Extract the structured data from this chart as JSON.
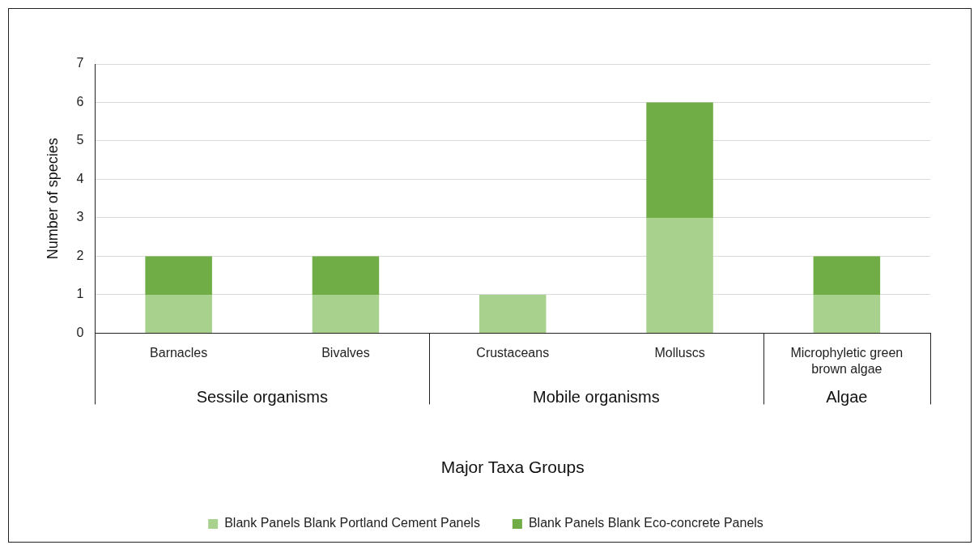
{
  "chart_data": {
    "type": "bar",
    "stacked": true,
    "xlabel": "Major Taxa Groups",
    "ylabel": "Number of species",
    "categories": [
      "Barnacles",
      "Bivalves",
      "Crustaceans",
      "Molluscs",
      "Microphyletic green brown algae"
    ],
    "series": [
      {
        "name": "Blank Panels Blank Portland Cement Panels",
        "color": "#a9d18e",
        "values": [
          1,
          1,
          1,
          3,
          1
        ]
      },
      {
        "name": "Blank Panels Blank Eco-concrete Panels",
        "color": "#70ad47",
        "values": [
          1,
          1,
          0,
          3,
          1
        ]
      }
    ],
    "ylim": [
      0,
      7
    ],
    "yticks": [
      0,
      1,
      2,
      3,
      4,
      5,
      6,
      7
    ],
    "grid": "y",
    "legend": "bottom",
    "annotations": [
      "Sessile organisms",
      "Mobile organisms",
      "Algae"
    ]
  }
}
